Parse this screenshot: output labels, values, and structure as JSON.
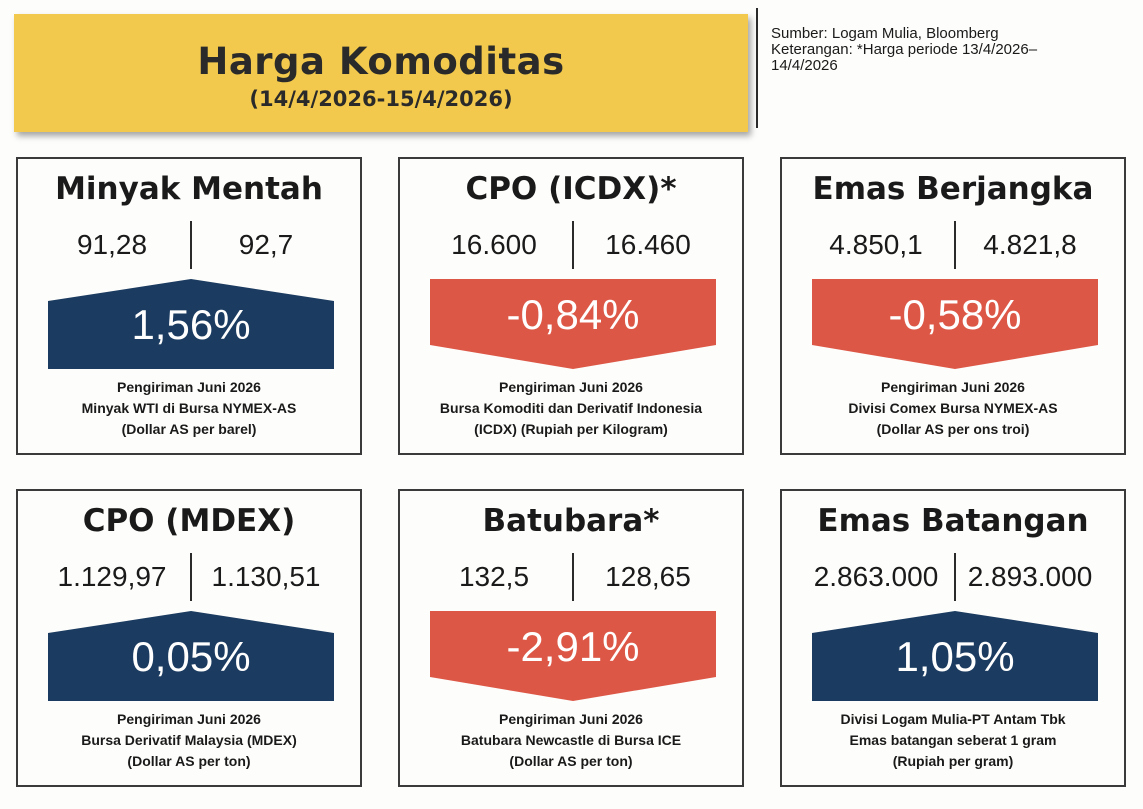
{
  "header": {
    "title": "Harga Komoditas",
    "subtitle": "(14/4/2026-15/4/2026)"
  },
  "source": {
    "line1": "Sumber: Logam Mulia, Bloomberg",
    "line2": "Keterangan: *Harga periode 13/4/2026–",
    "line3": "14/4/2026"
  },
  "colors": {
    "up": "#1b3b60",
    "down": "#dd5746",
    "header": "#f2c94c"
  },
  "cards": [
    {
      "title": "Minyak Mentah",
      "value1": "91,28",
      "value2": "92,7",
      "change": "1,56%",
      "direction": "up",
      "desc1": "Pengiriman Juni 2026",
      "desc2": "Minyak WTI di Bursa NYMEX-AS",
      "desc3": "(Dollar AS per barel)"
    },
    {
      "title": "CPO (ICDX)*",
      "value1": "16.600",
      "value2": "16.460",
      "change": "-0,84%",
      "direction": "down",
      "desc1": "Pengiriman Juni 2026",
      "desc2": "Bursa Komoditi dan Derivatif Indonesia",
      "desc3": "(ICDX) (Rupiah per Kilogram)"
    },
    {
      "title": "Emas Berjangka",
      "value1": "4.850,1",
      "value2": "4.821,8",
      "change": "-0,58%",
      "direction": "down",
      "desc1": "Pengiriman Juni 2026",
      "desc2": "Divisi Comex Bursa NYMEX-AS",
      "desc3": "(Dollar AS per ons troi)"
    },
    {
      "title": "CPO (MDEX)",
      "value1": "1.129,97",
      "value2": "1.130,51",
      "change": "0,05%",
      "direction": "up",
      "desc1": "Pengiriman Juni 2026",
      "desc2": "Bursa Derivatif Malaysia (MDEX)",
      "desc3": "(Dollar AS per ton)"
    },
    {
      "title": "Batubara*",
      "value1": "132,5",
      "value2": "128,65",
      "change": "-2,91%",
      "direction": "down",
      "desc1": "Pengiriman Juni 2026",
      "desc2": "Batubara Newcastle di Bursa ICE",
      "desc3": "(Dollar AS per ton)"
    },
    {
      "title": "Emas Batangan",
      "value1": "2.863.000",
      "value2": "2.893.000",
      "change": "1,05%",
      "direction": "up",
      "desc1": "Divisi Logam Mulia-PT Antam Tbk",
      "desc2": "Emas batangan seberat 1 gram",
      "desc3": "(Rupiah per gram)"
    }
  ]
}
